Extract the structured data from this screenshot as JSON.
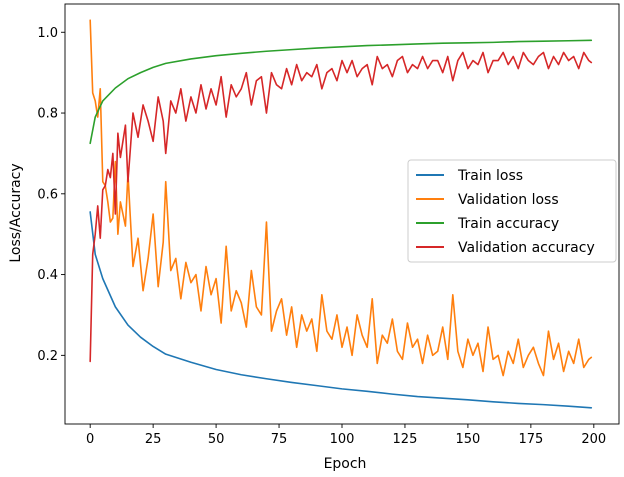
{
  "chart_data": {
    "type": "line",
    "title": "",
    "xlabel": "Epoch",
    "ylabel": "Loss/Accuracy",
    "xlim": [
      -10,
      210
    ],
    "ylim": [
      0.03,
      1.07
    ],
    "x_ticks": [
      0,
      25,
      50,
      75,
      100,
      125,
      150,
      175,
      200
    ],
    "y_ticks": [
      0.2,
      0.4,
      0.6,
      0.8,
      1.0
    ],
    "x_tick_labels": [
      "0",
      "25",
      "50",
      "75",
      "100",
      "125",
      "150",
      "175",
      "200"
    ],
    "y_tick_labels": [
      "0.2",
      "0.4",
      "0.6",
      "0.8",
      "1.0"
    ],
    "grid": false,
    "legend_position": "center-right",
    "series": [
      {
        "name": "Train loss",
        "color": "#1f77b4",
        "x": [
          0,
          2,
          5,
          10,
          15,
          20,
          25,
          30,
          40,
          50,
          60,
          70,
          80,
          90,
          100,
          110,
          120,
          130,
          140,
          150,
          160,
          170,
          180,
          190,
          199
        ],
        "values": [
          0.555,
          0.45,
          0.39,
          0.32,
          0.275,
          0.245,
          0.222,
          0.203,
          0.183,
          0.165,
          0.152,
          0.142,
          0.133,
          0.125,
          0.117,
          0.111,
          0.104,
          0.098,
          0.094,
          0.09,
          0.085,
          0.081,
          0.078,
          0.074,
          0.07
        ]
      },
      {
        "name": "Validation loss",
        "color": "#ff7f0e",
        "x": [
          0,
          1,
          2,
          3,
          4,
          5,
          6,
          7,
          8,
          9,
          10,
          11,
          12,
          13,
          14,
          15,
          17,
          19,
          21,
          23,
          25,
          27,
          29,
          30,
          32,
          34,
          36,
          38,
          40,
          42,
          44,
          46,
          48,
          50,
          52,
          54,
          56,
          58,
          60,
          62,
          64,
          66,
          68,
          70,
          72,
          74,
          76,
          78,
          80,
          82,
          84,
          86,
          88,
          90,
          92,
          94,
          96,
          98,
          100,
          102,
          104,
          106,
          108,
          110,
          112,
          114,
          116,
          118,
          120,
          122,
          124,
          126,
          128,
          130,
          132,
          134,
          136,
          138,
          140,
          142,
          144,
          146,
          148,
          150,
          152,
          154,
          156,
          158,
          160,
          162,
          164,
          166,
          168,
          170,
          172,
          174,
          176,
          178,
          180,
          182,
          184,
          186,
          188,
          190,
          192,
          194,
          196,
          198,
          199
        ],
        "values": [
          1.03,
          0.85,
          0.83,
          0.79,
          0.86,
          0.63,
          0.62,
          0.58,
          0.53,
          0.54,
          0.68,
          0.5,
          0.58,
          0.55,
          0.52,
          0.65,
          0.42,
          0.49,
          0.36,
          0.44,
          0.55,
          0.37,
          0.48,
          0.63,
          0.41,
          0.44,
          0.34,
          0.43,
          0.38,
          0.4,
          0.31,
          0.42,
          0.35,
          0.39,
          0.28,
          0.47,
          0.31,
          0.36,
          0.33,
          0.27,
          0.41,
          0.32,
          0.3,
          0.53,
          0.26,
          0.31,
          0.34,
          0.25,
          0.32,
          0.22,
          0.3,
          0.26,
          0.29,
          0.21,
          0.35,
          0.26,
          0.24,
          0.3,
          0.22,
          0.27,
          0.2,
          0.3,
          0.25,
          0.22,
          0.34,
          0.18,
          0.25,
          0.23,
          0.29,
          0.21,
          0.19,
          0.28,
          0.22,
          0.24,
          0.18,
          0.25,
          0.2,
          0.21,
          0.27,
          0.19,
          0.35,
          0.21,
          0.17,
          0.24,
          0.2,
          0.23,
          0.16,
          0.27,
          0.19,
          0.2,
          0.15,
          0.21,
          0.18,
          0.24,
          0.17,
          0.2,
          0.22,
          0.18,
          0.15,
          0.26,
          0.19,
          0.23,
          0.16,
          0.21,
          0.18,
          0.24,
          0.17,
          0.19,
          0.195
        ]
      },
      {
        "name": "Train accuracy",
        "color": "#2ca02c",
        "x": [
          0,
          2,
          5,
          10,
          15,
          20,
          25,
          30,
          40,
          50,
          60,
          70,
          80,
          90,
          100,
          110,
          120,
          130,
          140,
          150,
          160,
          170,
          180,
          190,
          199
        ],
        "values": [
          0.725,
          0.79,
          0.83,
          0.862,
          0.885,
          0.9,
          0.913,
          0.923,
          0.934,
          0.942,
          0.948,
          0.953,
          0.957,
          0.961,
          0.964,
          0.967,
          0.969,
          0.971,
          0.973,
          0.974,
          0.975,
          0.977,
          0.978,
          0.979,
          0.98
        ]
      },
      {
        "name": "Validation accuracy",
        "color": "#d62728",
        "x": [
          0,
          1,
          2,
          3,
          4,
          5,
          6,
          7,
          8,
          9,
          10,
          11,
          12,
          13,
          14,
          15,
          17,
          19,
          21,
          23,
          25,
          27,
          29,
          30,
          32,
          34,
          36,
          38,
          40,
          42,
          44,
          46,
          48,
          50,
          52,
          54,
          56,
          58,
          60,
          62,
          64,
          66,
          68,
          70,
          72,
          74,
          76,
          78,
          80,
          82,
          84,
          86,
          88,
          90,
          92,
          94,
          96,
          98,
          100,
          102,
          104,
          106,
          108,
          110,
          112,
          114,
          116,
          118,
          120,
          122,
          124,
          126,
          128,
          130,
          132,
          134,
          136,
          138,
          140,
          142,
          144,
          146,
          148,
          150,
          152,
          154,
          156,
          158,
          160,
          162,
          164,
          166,
          168,
          170,
          172,
          174,
          176,
          178,
          180,
          182,
          184,
          186,
          188,
          190,
          192,
          194,
          196,
          198,
          199
        ],
        "values": [
          0.185,
          0.45,
          0.5,
          0.57,
          0.49,
          0.61,
          0.62,
          0.66,
          0.64,
          0.7,
          0.55,
          0.75,
          0.69,
          0.73,
          0.77,
          0.63,
          0.8,
          0.74,
          0.82,
          0.78,
          0.73,
          0.84,
          0.78,
          0.7,
          0.83,
          0.8,
          0.86,
          0.78,
          0.84,
          0.8,
          0.87,
          0.81,
          0.86,
          0.82,
          0.89,
          0.79,
          0.87,
          0.84,
          0.86,
          0.9,
          0.82,
          0.88,
          0.89,
          0.8,
          0.9,
          0.87,
          0.86,
          0.91,
          0.87,
          0.92,
          0.88,
          0.9,
          0.89,
          0.92,
          0.86,
          0.9,
          0.91,
          0.88,
          0.93,
          0.9,
          0.93,
          0.89,
          0.91,
          0.92,
          0.87,
          0.94,
          0.91,
          0.92,
          0.89,
          0.93,
          0.94,
          0.9,
          0.92,
          0.91,
          0.94,
          0.91,
          0.93,
          0.93,
          0.9,
          0.94,
          0.88,
          0.93,
          0.95,
          0.91,
          0.93,
          0.92,
          0.95,
          0.9,
          0.93,
          0.93,
          0.95,
          0.92,
          0.94,
          0.91,
          0.95,
          0.93,
          0.92,
          0.94,
          0.95,
          0.91,
          0.94,
          0.92,
          0.95,
          0.93,
          0.94,
          0.91,
          0.95,
          0.93,
          0.925
        ]
      }
    ]
  }
}
